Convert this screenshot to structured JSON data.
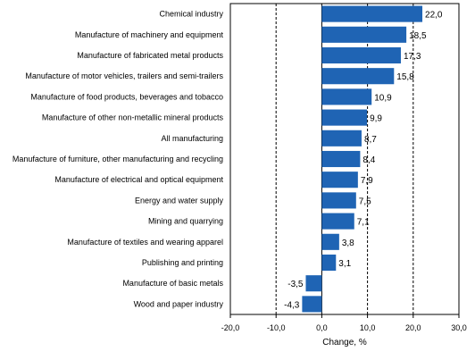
{
  "chart_data": {
    "type": "bar",
    "orientation": "horizontal",
    "categories": [
      "Chemical industry",
      "Manufacture of machinery and equipment",
      "Manufacture of fabricated metal products",
      "Manufacture of motor vehicles, trailers and semi-trailers",
      "Manufacture of food products, beverages and tobacco",
      "Manufacture of other non-metallic mineral products",
      "All manufacturing",
      "Manufacture of furniture, other manufacturing and recycling",
      "Manufacture of electrical and optical equipment",
      "Energy and water supply",
      "Mining and quarrying",
      "Manufacture of textiles and wearing apparel",
      "Publishing and printing",
      "Manufacture of basic metals",
      "Wood and paper industry"
    ],
    "values": [
      22.0,
      18.5,
      17.3,
      15.8,
      10.9,
      9.9,
      8.7,
      8.4,
      7.9,
      7.5,
      7.1,
      3.8,
      3.1,
      -3.5,
      -4.3
    ],
    "value_labels": [
      "22,0",
      "18,5",
      "17,3",
      "15,8",
      "10,9",
      "9,9",
      "8,7",
      "8,4",
      "7,9",
      "7,5",
      "7,1",
      "3,8",
      "3,1",
      "-3,5",
      "-4,3"
    ],
    "xlim": [
      -20,
      30
    ],
    "xticks": [
      -20,
      -10,
      0,
      10,
      20,
      30
    ],
    "xtick_labels": [
      "-20,0",
      "-10,0",
      "0,0",
      "10,0",
      "20,0",
      "30,0"
    ],
    "xlabel": "Change, %",
    "ylabel": "",
    "title": "",
    "grid": "dashed vertical lines",
    "legend": "none",
    "bar_color": "#1f64b4",
    "grid_color": "#000000"
  }
}
